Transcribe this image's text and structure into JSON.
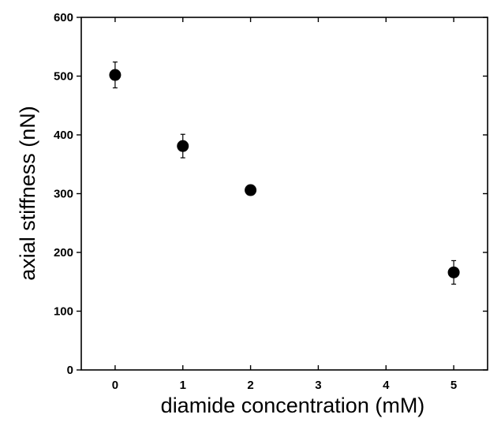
{
  "chart_data": {
    "type": "scatter",
    "title": "",
    "xlabel": "diamide concentration (mM)",
    "ylabel": "axial stiffness (nN)",
    "xlim": [
      -0.5,
      5.5
    ],
    "ylim": [
      0,
      600
    ],
    "xticks": [
      0,
      1,
      2,
      3,
      4,
      5
    ],
    "yticks": [
      0,
      100,
      200,
      300,
      400,
      500,
      600
    ],
    "xtick_labels": [
      "0",
      "1",
      "2",
      "3",
      "4",
      "5"
    ],
    "ytick_labels": [
      "0",
      "100",
      "200",
      "300",
      "400",
      "500",
      "600"
    ],
    "grid": false,
    "legend": "none",
    "marker_color": "#000000",
    "points": [
      {
        "x": 0,
        "y": 502,
        "error": 22
      },
      {
        "x": 1,
        "y": 381,
        "error": 20
      },
      {
        "x": 2,
        "y": 306,
        "error": 4
      },
      {
        "x": 5,
        "y": 166,
        "error": 20
      }
    ]
  }
}
